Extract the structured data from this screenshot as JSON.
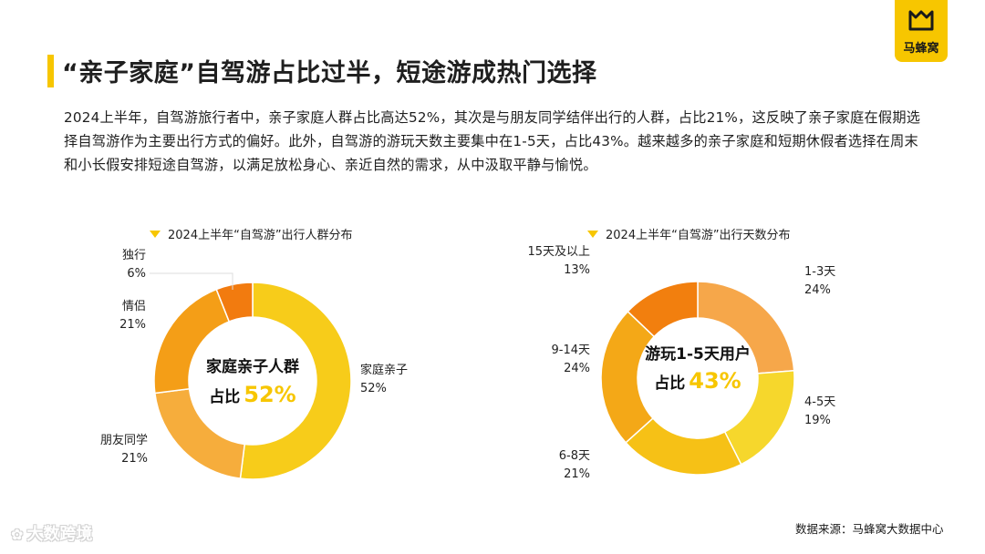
{
  "page": {
    "title": "“亲子家庭”自驾游占比过半，短途游成热门选择",
    "description": "2024上半年，自驾游旅行者中，亲子家庭人群占比高达52%，其次是与朋友同学结伴出行的人群，占比21%，这反映了亲子家庭在假期选择自驾游作为主要出行方式的偏好。此外，自驾游的游玩天数主要集中在1-5天，占比43%。越来越多的亲子家庭和短期休假者选择在周末和小长假安排短途自驾游，以满足放松身心、亲近自然的需求，从中汲取平静与愉悦。",
    "logo_text": "马蜂窝",
    "source": "数据来源：马蜂窝大数据中心",
    "watermark": "大数跨境",
    "accent": "#f7c600"
  },
  "chart_data": [
    {
      "type": "pie",
      "title": "2024上半年“自驾游”出行人群分布",
      "center_line1": "家庭亲子人群",
      "center_prefix": "占比",
      "center_value": "52%",
      "slices": [
        {
          "label": "家庭亲子",
          "value": 52,
          "display": "52%",
          "color": "#f7cc1a"
        },
        {
          "label": "朋友同学",
          "value": 21,
          "display": "21%",
          "color": "#f6ad3c"
        },
        {
          "label": "情侣",
          "value": 21,
          "display": "21%",
          "color": "#f49e17"
        },
        {
          "label": "独行",
          "value": 6,
          "display": "6%",
          "color": "#f27b0f"
        }
      ]
    },
    {
      "type": "pie",
      "title": "2024上半年“自驾游”出行天数分布",
      "center_line1": "游玩1-5天用户",
      "center_prefix": "占比",
      "center_value": "43%",
      "slices": [
        {
          "label": "1-3天",
          "value": 24,
          "display": "24%",
          "color": "#f6a74a"
        },
        {
          "label": "4-5天",
          "value": 19,
          "display": "19%",
          "color": "#f6d72c"
        },
        {
          "label": "6-8天",
          "value": 21,
          "display": "21%",
          "color": "#f6c116"
        },
        {
          "label": "9-14天",
          "value": 24,
          "display": "24%",
          "color": "#f4a817"
        },
        {
          "label": "15天及以上",
          "value": 13,
          "display": "13%",
          "color": "#f27f0e"
        }
      ]
    }
  ]
}
